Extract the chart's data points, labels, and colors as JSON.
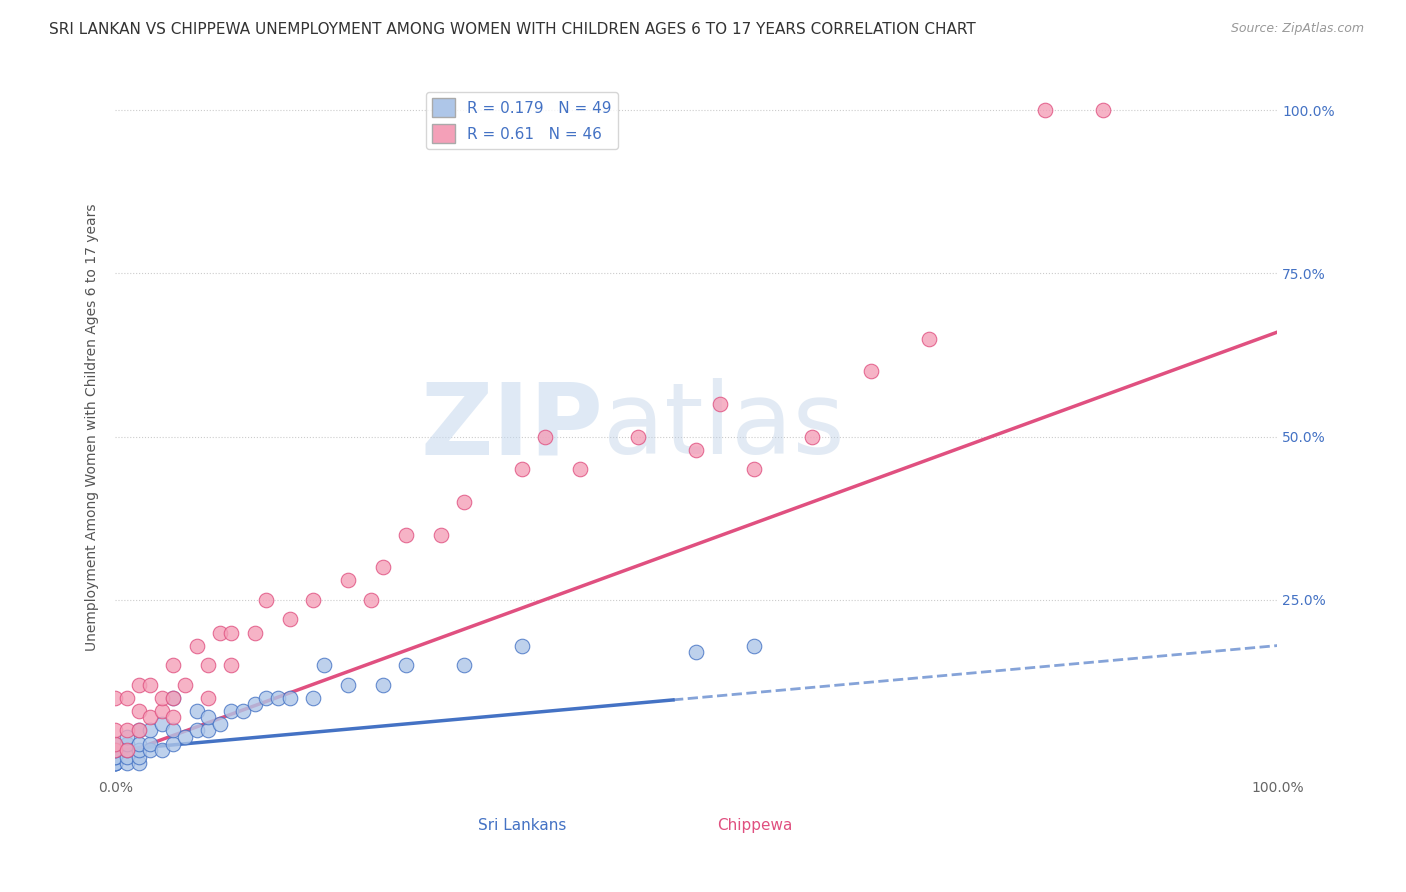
{
  "title": "SRI LANKAN VS CHIPPEWA UNEMPLOYMENT AMONG WOMEN WITH CHILDREN AGES 6 TO 17 YEARS CORRELATION CHART",
  "source": "Source: ZipAtlas.com",
  "ylabel": "Unemployment Among Women with Children Ages 6 to 17 years",
  "xlim": [
    0.0,
    1.0
  ],
  "ylim": [
    -0.02,
    1.05
  ],
  "xtick_labels": [
    "0.0%",
    "100.0%"
  ],
  "xtick_positions": [
    0.0,
    1.0
  ],
  "ytick_labels": [
    "25.0%",
    "50.0%",
    "75.0%",
    "100.0%"
  ],
  "ytick_positions": [
    0.25,
    0.5,
    0.75,
    1.0
  ],
  "sri_lankan": {
    "R": 0.179,
    "N": 49,
    "color": "#aec6e8",
    "line_color": "#4472c4",
    "x": [
      0.0,
      0.0,
      0.0,
      0.0,
      0.0,
      0.0,
      0.0,
      0.0,
      0.0,
      0.0,
      0.01,
      0.01,
      0.01,
      0.01,
      0.01,
      0.02,
      0.02,
      0.02,
      0.02,
      0.02,
      0.03,
      0.03,
      0.03,
      0.04,
      0.04,
      0.05,
      0.05,
      0.05,
      0.06,
      0.07,
      0.07,
      0.08,
      0.08,
      0.09,
      0.1,
      0.11,
      0.12,
      0.13,
      0.14,
      0.15,
      0.17,
      0.18,
      0.2,
      0.23,
      0.25,
      0.3,
      0.35,
      0.5,
      0.55
    ],
    "y": [
      0.0,
      0.0,
      0.0,
      0.0,
      0.0,
      0.01,
      0.01,
      0.02,
      0.02,
      0.03,
      0.0,
      0.01,
      0.02,
      0.03,
      0.04,
      0.0,
      0.01,
      0.02,
      0.03,
      0.05,
      0.02,
      0.03,
      0.05,
      0.02,
      0.06,
      0.03,
      0.05,
      0.1,
      0.04,
      0.05,
      0.08,
      0.05,
      0.07,
      0.06,
      0.08,
      0.08,
      0.09,
      0.1,
      0.1,
      0.1,
      0.1,
      0.15,
      0.12,
      0.12,
      0.15,
      0.15,
      0.18,
      0.17,
      0.18
    ]
  },
  "chippewa": {
    "R": 0.61,
    "N": 46,
    "color": "#f4a0b8",
    "line_color": "#e05080",
    "x": [
      0.0,
      0.0,
      0.0,
      0.0,
      0.01,
      0.01,
      0.01,
      0.02,
      0.02,
      0.02,
      0.03,
      0.03,
      0.04,
      0.04,
      0.05,
      0.05,
      0.05,
      0.06,
      0.07,
      0.08,
      0.08,
      0.09,
      0.1,
      0.1,
      0.12,
      0.13,
      0.15,
      0.17,
      0.2,
      0.22,
      0.23,
      0.25,
      0.28,
      0.3,
      0.35,
      0.37,
      0.4,
      0.45,
      0.5,
      0.52,
      0.55,
      0.6,
      0.65,
      0.7,
      0.8,
      0.85
    ],
    "y": [
      0.02,
      0.03,
      0.05,
      0.1,
      0.02,
      0.05,
      0.1,
      0.05,
      0.08,
      0.12,
      0.07,
      0.12,
      0.08,
      0.1,
      0.07,
      0.1,
      0.15,
      0.12,
      0.18,
      0.1,
      0.15,
      0.2,
      0.15,
      0.2,
      0.2,
      0.25,
      0.22,
      0.25,
      0.28,
      0.25,
      0.3,
      0.35,
      0.35,
      0.4,
      0.45,
      0.5,
      0.45,
      0.5,
      0.48,
      0.55,
      0.45,
      0.5,
      0.6,
      0.65,
      1.0,
      1.0
    ]
  },
  "sri_lankan_trend": {
    "x_solid_start": 0.0,
    "x_solid_end": 0.48,
    "x_dash_start": 0.48,
    "x_dash_end": 1.0,
    "slope": 0.16,
    "intercept": 0.02
  },
  "chippewa_trend": {
    "x_start": 0.0,
    "x_end": 1.0,
    "slope": 0.65,
    "intercept": 0.01
  },
  "background_color": "#ffffff",
  "grid_color": "#cccccc",
  "title_fontsize": 11,
  "label_fontsize": 10,
  "tick_fontsize": 10,
  "legend_fontsize": 11,
  "bottom_label_sri": "Sri Lankans",
  "bottom_label_chip": "Chippewa"
}
